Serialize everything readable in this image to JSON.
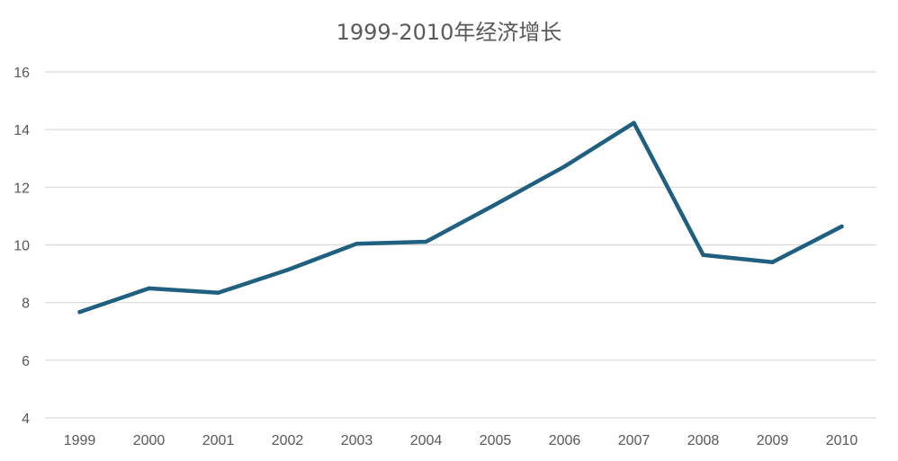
{
  "colors": {
    "series": "#1f5f7f",
    "grid": "#d9d9d9",
    "text": "#595959",
    "background": "#ffffff"
  },
  "chart_data": {
    "type": "line",
    "title": "1999-2010年经济增长",
    "xlabel": "",
    "ylabel": "",
    "categories": [
      "1999",
      "2000",
      "2001",
      "2002",
      "2003",
      "2004",
      "2005",
      "2006",
      "2007",
      "2008",
      "2009",
      "2010"
    ],
    "series": [
      {
        "values": [
          7.67,
          8.49,
          8.34,
          9.13,
          10.04,
          10.11,
          11.4,
          12.72,
          14.23,
          9.65,
          9.4,
          10.64
        ]
      }
    ],
    "ylim": [
      4,
      16
    ],
    "yticks": [
      "4",
      "6",
      "8",
      "10",
      "12",
      "14",
      "16"
    ],
    "grid": true,
    "legend": "none"
  }
}
